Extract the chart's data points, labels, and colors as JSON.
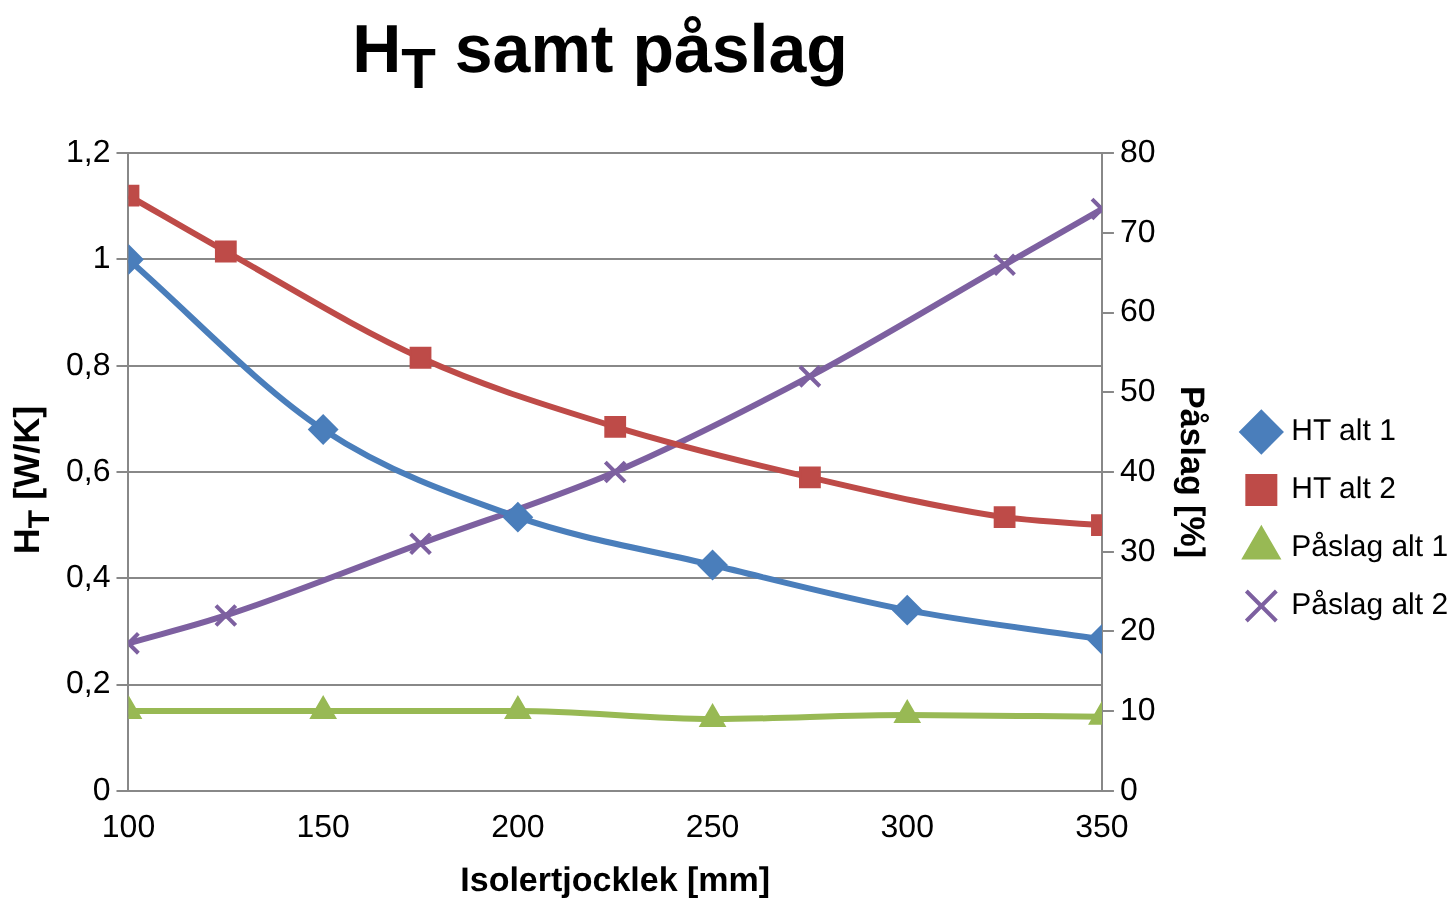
{
  "chart_data": {
    "type": "line",
    "title": "H$_{T}$ samt påslag",
    "xlabel": "Isolertjocklek [mm]",
    "ylabel": "H$_{T}$ [W/K]",
    "y2label": "Påslag [%]",
    "xlim": [
      100,
      350
    ],
    "xticks": [
      100,
      150,
      200,
      250,
      300,
      350
    ],
    "ylim": [
      0,
      1.2
    ],
    "yticks": [
      0,
      {
        "value": 0.2,
        "label": "0,2"
      },
      {
        "value": 0.4,
        "label": "0,4"
      },
      {
        "value": 0.6,
        "label": "0,6"
      },
      {
        "value": 0.8,
        "label": "0,8"
      },
      1,
      {
        "value": 1.2,
        "label": "1,2"
      }
    ],
    "y2lim": [
      0,
      80
    ],
    "y2ticks": [
      0,
      10,
      20,
      30,
      40,
      50,
      60,
      70,
      80
    ],
    "grid": "y",
    "legend": "right",
    "line_style": "solid",
    "series": [
      {
        "name": "HT alt 1",
        "color": "#4a7ebb",
        "marker": "diamond",
        "x": [
          100,
          150,
          200,
          250,
          300,
          350
        ],
        "values": [
          1.0,
          0.68,
          0.515,
          0.425,
          0.34,
          0.285
        ]
      },
      {
        "name": "HT alt 2",
        "color": "#be4b48",
        "marker": "square",
        "x": [
          100,
          125,
          175,
          225,
          275,
          325,
          350
        ],
        "values": [
          1.12,
          1.015,
          0.815,
          0.685,
          0.59,
          0.515,
          0.5
        ]
      },
      {
        "name": "Påslag alt 1",
        "color": "#98b954",
        "marker": "triangle",
        "axis": "y2",
        "x": [
          100,
          150,
          200,
          250,
          300,
          350
        ],
        "values": [
          10,
          10,
          10,
          9,
          9.5,
          9.3
        ]
      },
      {
        "name": "Påslag alt 2",
        "color": "#7d60a0",
        "marker": "cross",
        "axis": "y2",
        "x": [
          100,
          125,
          175,
          225,
          275,
          325,
          350
        ],
        "values": [
          18.5,
          22,
          31,
          40,
          52,
          66,
          73
        ]
      }
    ]
  }
}
